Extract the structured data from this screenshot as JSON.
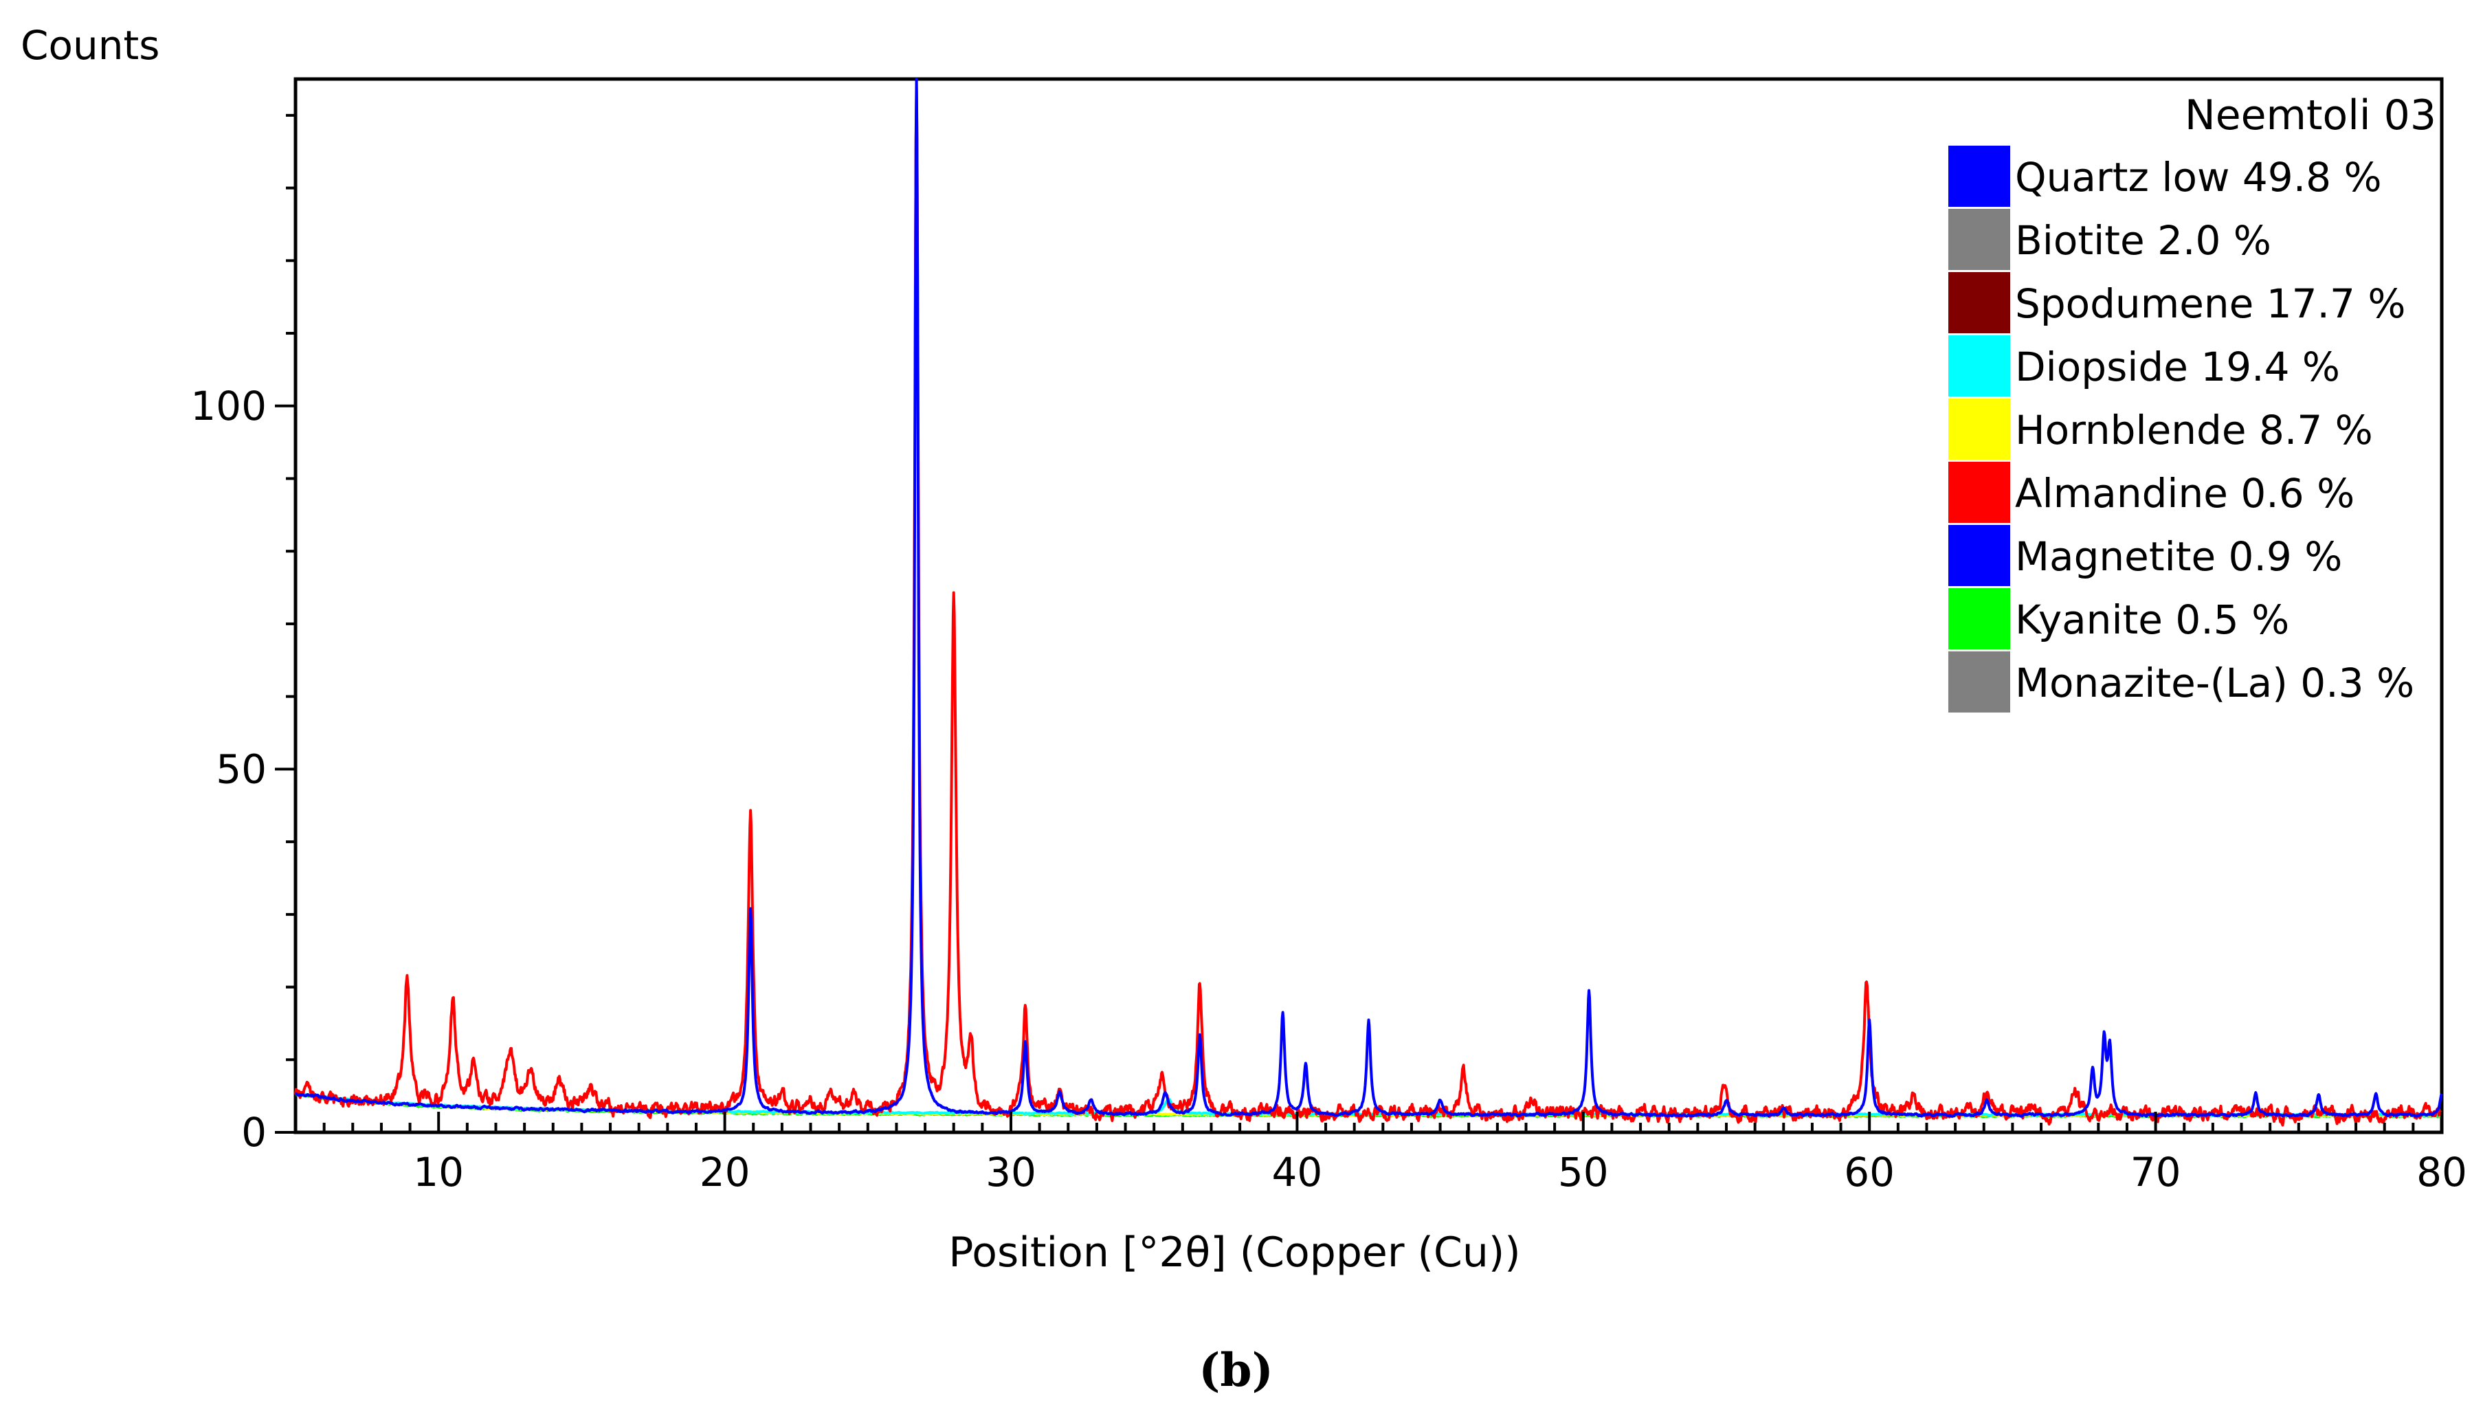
{
  "figure_label": "(b)",
  "chart_data": {
    "type": "line",
    "title": "Neemtoli 03",
    "xlabel": "Position [°2θ] (Copper (Cu))",
    "ylabel": "Counts",
    "xlim": [
      5,
      80
    ],
    "ylim": [
      0,
      145
    ],
    "x_ticks": [
      10,
      20,
      30,
      40,
      50,
      60,
      70,
      80
    ],
    "y_ticks": [
      0,
      50,
      100
    ],
    "grid": false,
    "legend_position": "top-right",
    "legend": [
      {
        "name": "Quartz low 49.8 %",
        "color": "#0000ff"
      },
      {
        "name": "Biotite 2.0 %",
        "color": "#808080"
      },
      {
        "name": "Spodumene 17.7 %",
        "color": "#800000"
      },
      {
        "name": "Diopside 19.4 %",
        "color": "#00ffff"
      },
      {
        "name": "Hornblende 8.7 %",
        "color": "#ffff00"
      },
      {
        "name": "Almandine 0.6 %",
        "color": "#ff0000"
      },
      {
        "name": "Magnetite 0.9 %",
        "color": "#0000ff"
      },
      {
        "name": "Kyanite 0.5 %",
        "color": "#00ff00"
      },
      {
        "name": "Monazite-(La) 0.3 %",
        "color": "#808080"
      }
    ],
    "series": [
      {
        "color": "#ff0000",
        "background": {
          "a": 0.0,
          "b": 2.5,
          "c": 310,
          "d": 2.0
        },
        "peaks": [
          [
            8.9,
            17,
            0.12
          ],
          [
            10.5,
            14,
            0.12
          ],
          [
            11.2,
            5,
            0.12
          ],
          [
            12.5,
            8,
            0.15
          ],
          [
            13.2,
            5,
            0.15
          ],
          [
            14.2,
            4,
            0.15
          ],
          [
            15.3,
            3,
            0.15
          ],
          [
            20.9,
            41,
            0.1
          ],
          [
            22.0,
            2,
            0.12
          ],
          [
            23.0,
            2,
            0.12
          ],
          [
            23.7,
            3,
            0.12
          ],
          [
            24.5,
            3,
            0.12
          ],
          [
            26.7,
            141,
            0.08
          ],
          [
            28.0,
            70,
            0.1
          ],
          [
            28.6,
            9,
            0.1
          ],
          [
            30.5,
            14,
            0.1
          ],
          [
            31.7,
            3,
            0.12
          ],
          [
            35.3,
            5,
            0.15
          ],
          [
            36.6,
            18,
            0.1
          ],
          [
            45.8,
            6,
            0.1
          ],
          [
            48.2,
            2,
            0.12
          ],
          [
            54.9,
            5,
            0.1
          ],
          [
            59.9,
            18,
            0.12
          ],
          [
            61.5,
            2,
            0.12
          ],
          [
            64.1,
            3,
            0.15
          ],
          [
            67.2,
            3,
            0.12
          ]
        ],
        "noise_amplitude": 1.2
      },
      {
        "color": "#0000ff",
        "background": {
          "a": 0.0,
          "b": 2.3,
          "c": 300,
          "d": 2.0
        },
        "peaks": [
          [
            20.9,
            28,
            0.08
          ],
          [
            26.7,
            145,
            0.07
          ],
          [
            30.5,
            10,
            0.08
          ],
          [
            31.7,
            3,
            0.1
          ],
          [
            32.8,
            2,
            0.1
          ],
          [
            35.4,
            3,
            0.12
          ],
          [
            36.6,
            11,
            0.08
          ],
          [
            39.5,
            14,
            0.08
          ],
          [
            40.3,
            7,
            0.08
          ],
          [
            42.5,
            13,
            0.08
          ],
          [
            45.0,
            2,
            0.1
          ],
          [
            50.2,
            17,
            0.08
          ],
          [
            55.0,
            2,
            0.1
          ],
          [
            57.0,
            1,
            0.1
          ],
          [
            60.0,
            13,
            0.08
          ],
          [
            64.1,
            2,
            0.1
          ],
          [
            67.8,
            6,
            0.08
          ],
          [
            68.2,
            10,
            0.08
          ],
          [
            68.4,
            9,
            0.08
          ],
          [
            73.5,
            3,
            0.08
          ],
          [
            75.7,
            3,
            0.08
          ],
          [
            77.7,
            3,
            0.08
          ],
          [
            80.0,
            3,
            0.08
          ]
        ],
        "noise_amplitude": 0.2
      },
      {
        "color": "#00ffff",
        "background": {
          "a": 0.0,
          "b": 2.4,
          "c": 300,
          "d": 2.0
        },
        "peaks": [
          [
            35.5,
            2,
            0.15
          ]
        ],
        "noise_amplitude": 0.1
      },
      {
        "color": "#ffff00",
        "background": {
          "a": 0.0,
          "b": 2.3,
          "c": 300,
          "d": 2.0
        },
        "peaks": [],
        "noise_amplitude": 0.1
      },
      {
        "color": "#00ff00",
        "background": {
          "a": 0.0,
          "b": 2.2,
          "c": 300,
          "d": 2.0
        },
        "peaks": [],
        "noise_amplitude": 0.1
      }
    ]
  }
}
